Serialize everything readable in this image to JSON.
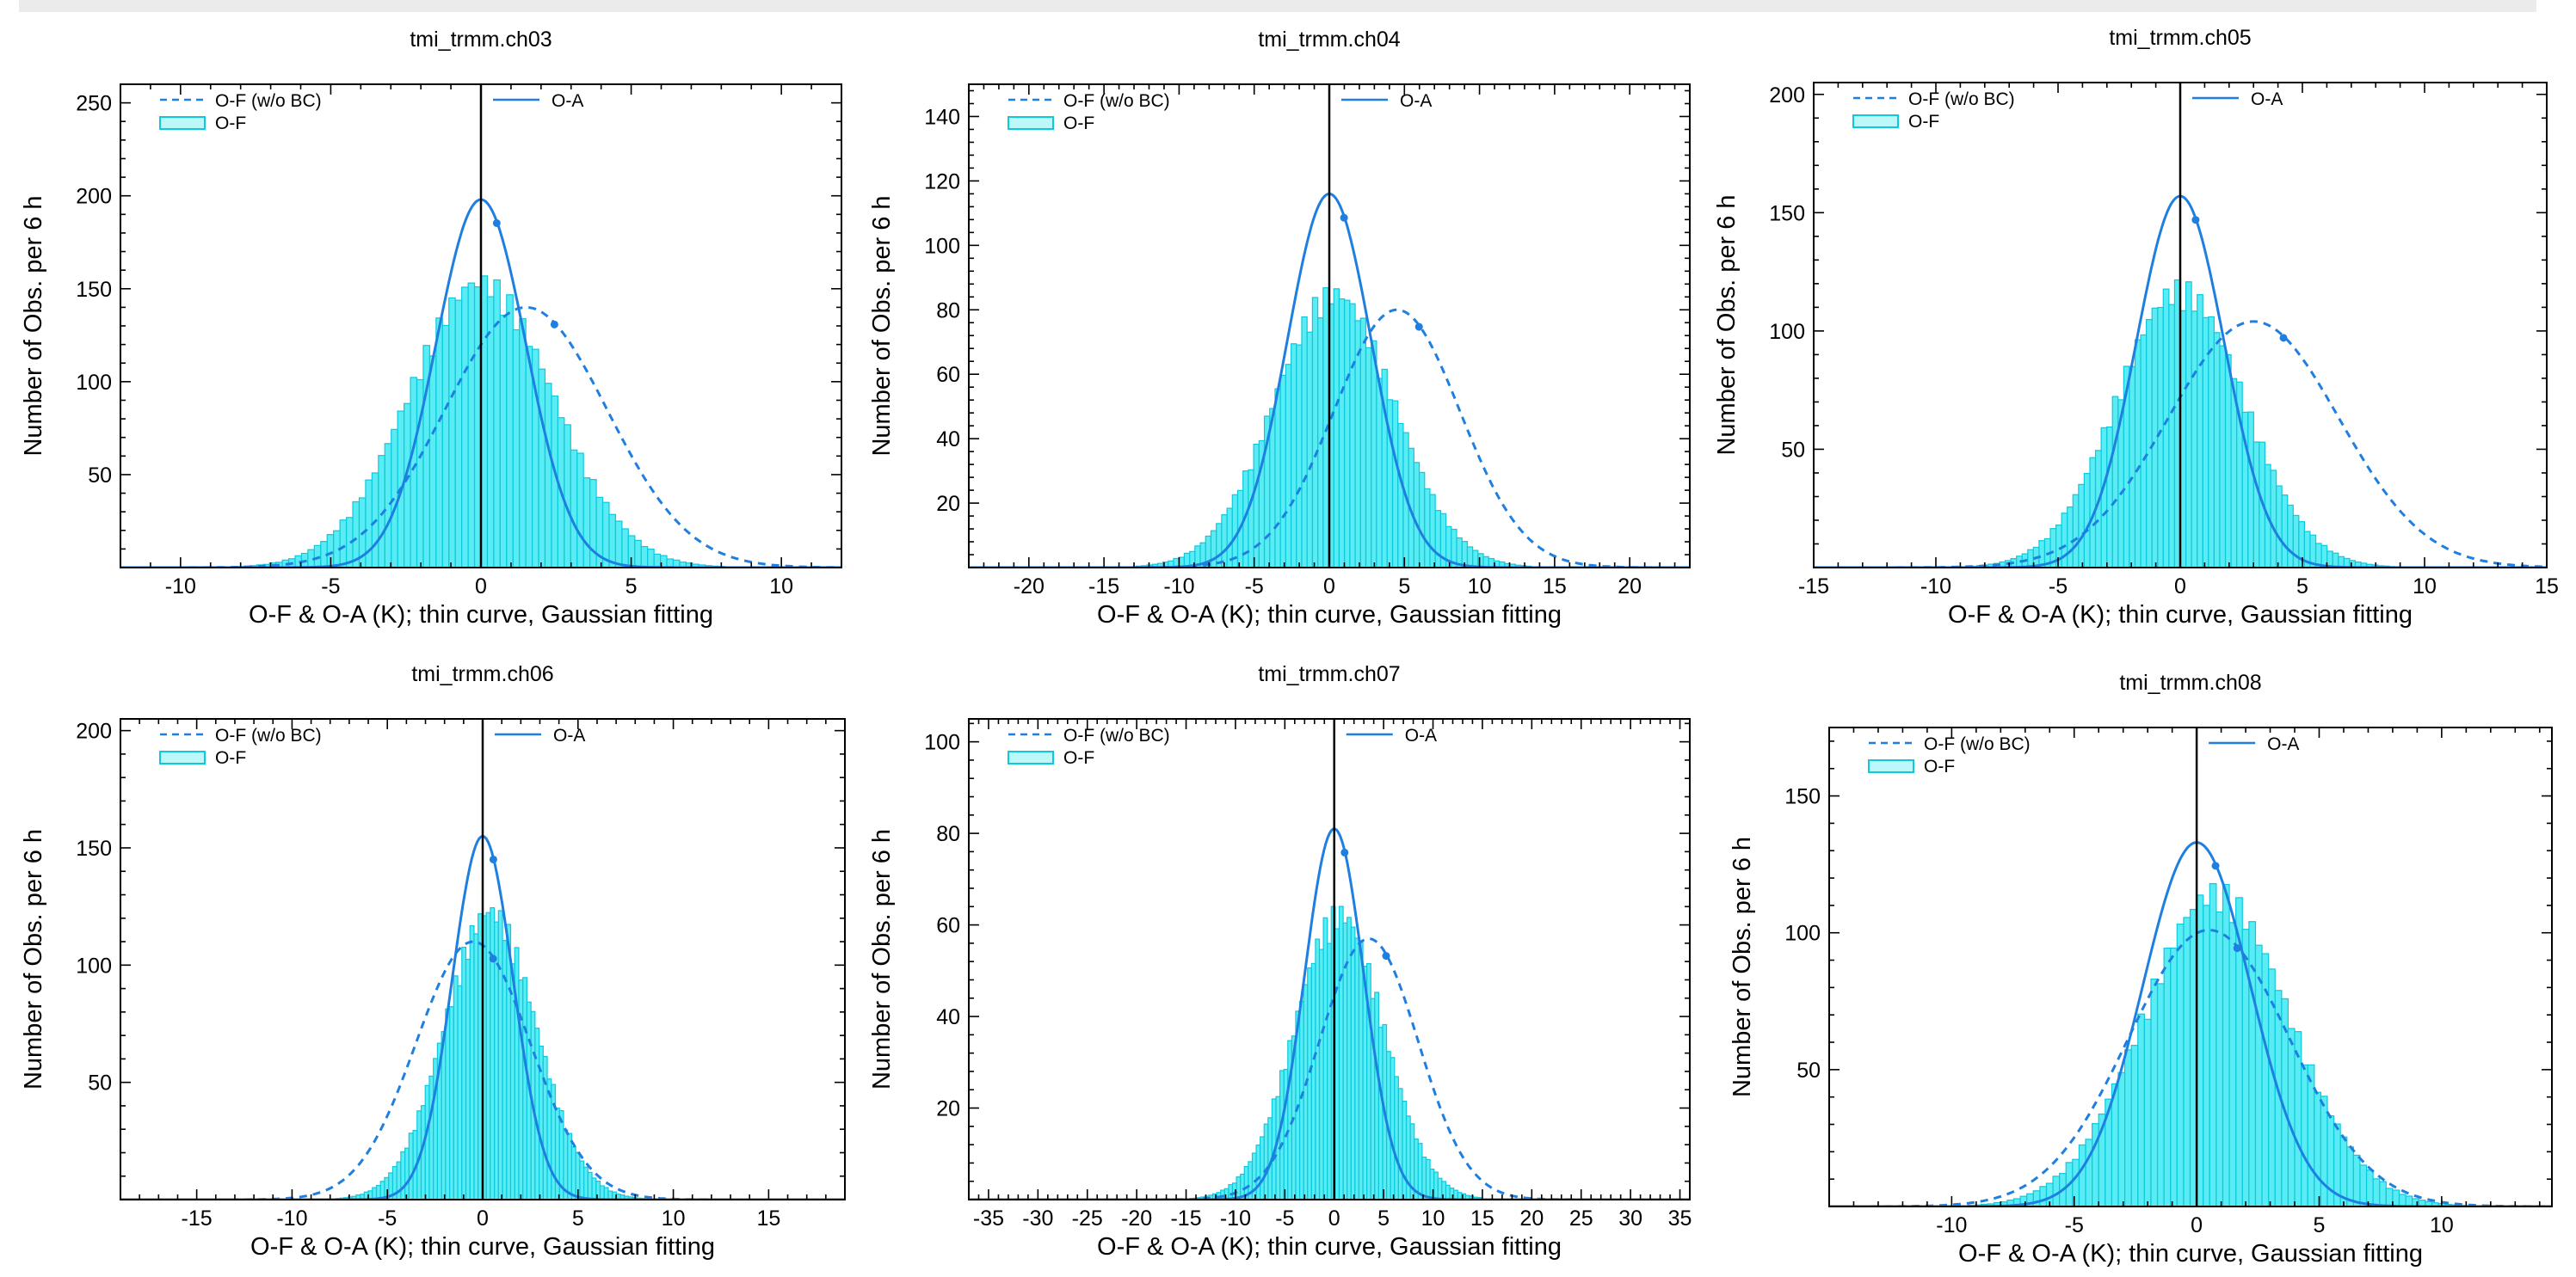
{
  "colors": {
    "oa": "#1e7fe0",
    "of_nobc": "#1e7fe0",
    "of_fill": "#22e5f0",
    "of_edge": "#0ec9dc",
    "axis": "#000000"
  },
  "chart_data": [
    {
      "type": "bar",
      "title": "tmi_trmm.ch03",
      "xlabel": "O-F & O-A (K); thin curve, Gaussian fitting",
      "ylabel": "Number of Obs. per 6 h",
      "xlim": [
        -12,
        12
      ],
      "ylim": [
        0,
        260
      ],
      "xticks": [
        -10,
        -5,
        0,
        5,
        10
      ],
      "yticks": [
        50,
        100,
        150,
        200,
        250
      ],
      "legend": {
        "of_nobc": "O-F (w/o BC)",
        "of": "O-F",
        "oa": "O-A"
      },
      "series": [
        {
          "name": "O-A",
          "style": "solid",
          "mu": 0.0,
          "sigma": 1.5,
          "peak": 198
        },
        {
          "name": "O-F (w/o BC)",
          "style": "dashed",
          "mu": 1.5,
          "sigma": 2.7,
          "peak": 140
        },
        {
          "name": "O-F",
          "style": "bars",
          "mu": 0.0,
          "sigma": 2.4,
          "peak": 150
        }
      ]
    },
    {
      "type": "bar",
      "title": "tmi_trmm.ch04",
      "xlabel": "O-F & O-A (K); thin curve, Gaussian fitting",
      "ylabel": "Number of Obs. per 6 h",
      "xlim": [
        -24,
        24
      ],
      "ylim": [
        0,
        150
      ],
      "xticks": [
        -20,
        -15,
        -10,
        -5,
        0,
        5,
        10,
        15,
        20
      ],
      "yticks": [
        20,
        40,
        60,
        80,
        100,
        120,
        140
      ],
      "legend": {
        "of_nobc": "O-F (w/o BC)",
        "of": "O-F",
        "oa": "O-A"
      },
      "series": [
        {
          "name": "O-A",
          "style": "solid",
          "mu": 0.0,
          "sigma": 2.8,
          "peak": 116
        },
        {
          "name": "O-F (w/o BC)",
          "style": "dashed",
          "mu": 4.5,
          "sigma": 4.2,
          "peak": 80
        },
        {
          "name": "O-F",
          "style": "bars",
          "mu": 0.3,
          "sigma": 4.0,
          "peak": 83
        }
      ]
    },
    {
      "type": "bar",
      "title": "tmi_trmm.ch05",
      "xlabel": "O-F & O-A (K); thin curve, Gaussian fitting",
      "ylabel": "Number of Obs. per 6 h",
      "xlim": [
        -15,
        15
      ],
      "ylim": [
        0,
        205
      ],
      "xticks": [
        -15,
        -10,
        -5,
        0,
        5,
        10,
        15
      ],
      "yticks": [
        50,
        100,
        150,
        200
      ],
      "legend": {
        "of_nobc": "O-F (w/o BC)",
        "of": "O-F",
        "oa": "O-A"
      },
      "series": [
        {
          "name": "O-A",
          "style": "solid",
          "mu": 0.0,
          "sigma": 1.8,
          "peak": 157
        },
        {
          "name": "O-F (w/o BC)",
          "style": "dashed",
          "mu": 3.0,
          "sigma": 3.5,
          "peak": 104
        },
        {
          "name": "O-F",
          "style": "bars",
          "mu": 0.0,
          "sigma": 2.6,
          "peak": 115
        }
      ]
    },
    {
      "type": "bar",
      "title": "tmi_trmm.ch06",
      "xlabel": "O-F & O-A (K); thin curve, Gaussian fitting",
      "ylabel": "Number of Obs. per 6 h",
      "xlim": [
        -19,
        19
      ],
      "ylim": [
        0,
        205
      ],
      "xticks": [
        -15,
        -10,
        -5,
        0,
        5,
        10,
        15
      ],
      "yticks": [
        50,
        100,
        150,
        200
      ],
      "legend": {
        "of_nobc": "O-F (w/o BC)",
        "of": "O-F",
        "oa": "O-A"
      },
      "series": [
        {
          "name": "O-A",
          "style": "solid",
          "mu": 0.0,
          "sigma": 1.6,
          "peak": 155
        },
        {
          "name": "O-F (w/o BC)",
          "style": "dashed",
          "mu": -0.5,
          "sigma": 3.0,
          "peak": 110
        },
        {
          "name": "O-F",
          "style": "bars",
          "mu": 0.4,
          "sigma": 2.4,
          "peak": 120
        }
      ]
    },
    {
      "type": "bar",
      "title": "tmi_trmm.ch07",
      "xlabel": "O-F & O-A (K); thin curve, Gaussian fitting",
      "ylabel": "Number of Obs. per 6 h",
      "xlim": [
        -37,
        36
      ],
      "ylim": [
        0,
        105
      ],
      "xticks": [
        -35,
        -30,
        -25,
        -20,
        -15,
        -10,
        -5,
        0,
        5,
        10,
        15,
        20,
        25,
        30,
        35
      ],
      "yticks": [
        20,
        40,
        60,
        80,
        100
      ],
      "legend": {
        "of_nobc": "O-F (w/o BC)",
        "of": "O-F",
        "oa": "O-A"
      },
      "series": [
        {
          "name": "O-A",
          "style": "solid",
          "mu": 0.0,
          "sigma": 3.0,
          "peak": 81
        },
        {
          "name": "O-F (w/o BC)",
          "style": "dashed",
          "mu": 3.5,
          "sigma": 5.0,
          "peak": 57
        },
        {
          "name": "O-F",
          "style": "bars",
          "mu": 0.5,
          "sigma": 4.5,
          "peak": 61
        }
      ]
    },
    {
      "type": "bar",
      "title": "tmi_trmm.ch08",
      "xlabel": "O-F & O-A (K); thin curve, Gaussian fitting",
      "ylabel": "Number of Obs. per 6 h",
      "xlim": [
        -15,
        14.5
      ],
      "ylim": [
        0,
        175
      ],
      "xticks": [
        -10,
        -5,
        0,
        5,
        10
      ],
      "yticks": [
        50,
        100,
        150
      ],
      "legend": {
        "of_nobc": "O-F (w/o BC)",
        "of": "O-F",
        "oa": "O-A"
      },
      "series": [
        {
          "name": "O-A",
          "style": "solid",
          "mu": 0.0,
          "sigma": 2.2,
          "peak": 133
        },
        {
          "name": "O-F (w/o BC)",
          "style": "dashed",
          "mu": 0.5,
          "sigma": 3.3,
          "peak": 101
        },
        {
          "name": "O-F",
          "style": "bars",
          "mu": 0.8,
          "sigma": 3.0,
          "peak": 112
        }
      ]
    }
  ]
}
